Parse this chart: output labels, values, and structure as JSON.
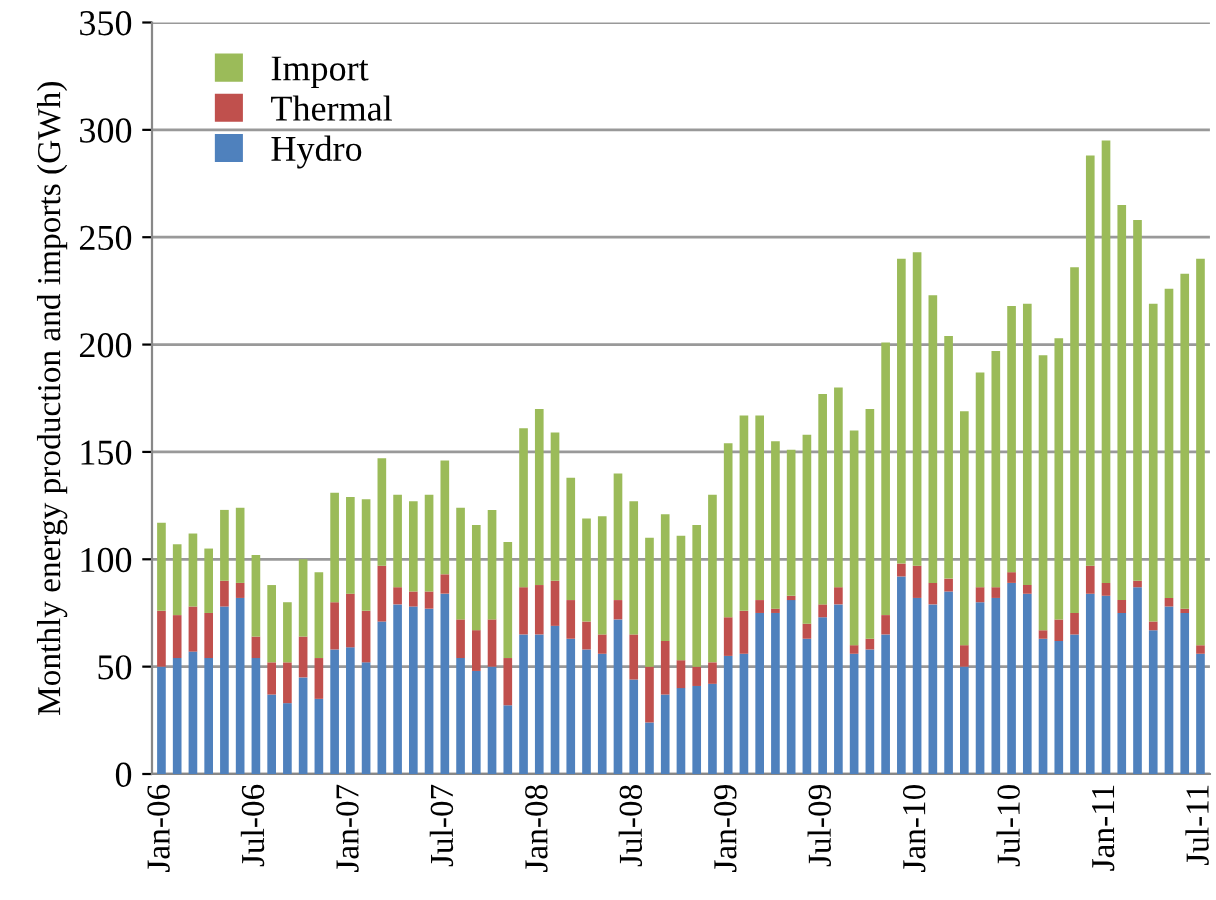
{
  "chart_data": {
    "type": "bar",
    "stacked": true,
    "ylabel": "Monthly energy production and imports (GWh)",
    "categories": [
      "Jan-06",
      null,
      null,
      null,
      null,
      null,
      "Jul-06",
      null,
      null,
      null,
      null,
      null,
      "Jan-07",
      null,
      null,
      null,
      null,
      null,
      "Jul-07",
      null,
      null,
      null,
      null,
      null,
      "Jan-08",
      null,
      null,
      null,
      null,
      null,
      "Jul-08",
      null,
      null,
      null,
      null,
      null,
      "Jan-09",
      null,
      null,
      null,
      null,
      null,
      "Jul-09",
      null,
      null,
      null,
      null,
      null,
      "Jan-10",
      null,
      null,
      null,
      null,
      null,
      "Jul-10",
      null,
      null,
      null,
      null,
      null,
      "Jan-11",
      null,
      null,
      null,
      null,
      null,
      "Jul-11"
    ],
    "series": [
      {
        "name": "Hydro",
        "color": "#4f81bd",
        "values": [
          50,
          54,
          57,
          54,
          78,
          82,
          54,
          37,
          33,
          45,
          35,
          58,
          59,
          52,
          71,
          79,
          78,
          77,
          84,
          54,
          48,
          50,
          32,
          65,
          65,
          69,
          63,
          58,
          56,
          72,
          44,
          24,
          37,
          40,
          41,
          42,
          55,
          56,
          75,
          75,
          81,
          63,
          73,
          79,
          56,
          58,
          65,
          92,
          82,
          79,
          85,
          50,
          80,
          82,
          89,
          84,
          63,
          62,
          65,
          84,
          83,
          75,
          87,
          67,
          78,
          75,
          56
        ]
      },
      {
        "name": "Thermal",
        "color": "#c0504d",
        "values": [
          26,
          20,
          21,
          21,
          12,
          7,
          10,
          15,
          19,
          19,
          19,
          22,
          25,
          24,
          26,
          8,
          7,
          8,
          9,
          18,
          19,
          22,
          22,
          22,
          23,
          21,
          18,
          13,
          9,
          9,
          21,
          26,
          25,
          13,
          9,
          10,
          18,
          20,
          6,
          2,
          2,
          7,
          6,
          8,
          4,
          5,
          9,
          6,
          15,
          10,
          6,
          10,
          7,
          5,
          5,
          4,
          4,
          10,
          10,
          13,
          6,
          6,
          3,
          4,
          4,
          2,
          4
        ]
      },
      {
        "name": "Import",
        "color": "#9bbb59",
        "values": [
          41,
          33,
          34,
          30,
          33,
          35,
          38,
          36,
          28,
          36,
          40,
          51,
          45,
          52,
          50,
          43,
          42,
          45,
          53,
          52,
          49,
          51,
          54,
          74,
          82,
          69,
          57,
          48,
          55,
          59,
          62,
          60,
          59,
          58,
          66,
          78,
          81,
          91,
          86,
          78,
          68,
          88,
          98,
          93,
          100,
          107,
          127,
          142,
          146,
          134,
          113,
          109,
          100,
          110,
          124,
          131,
          128,
          131,
          161,
          191,
          206,
          184,
          168,
          148,
          144,
          156,
          180
        ]
      }
    ],
    "ylim": [
      0,
      350
    ],
    "yticks": [
      0,
      50,
      100,
      150,
      200,
      250,
      300,
      350
    ],
    "grid": "y",
    "legend": "top left"
  }
}
